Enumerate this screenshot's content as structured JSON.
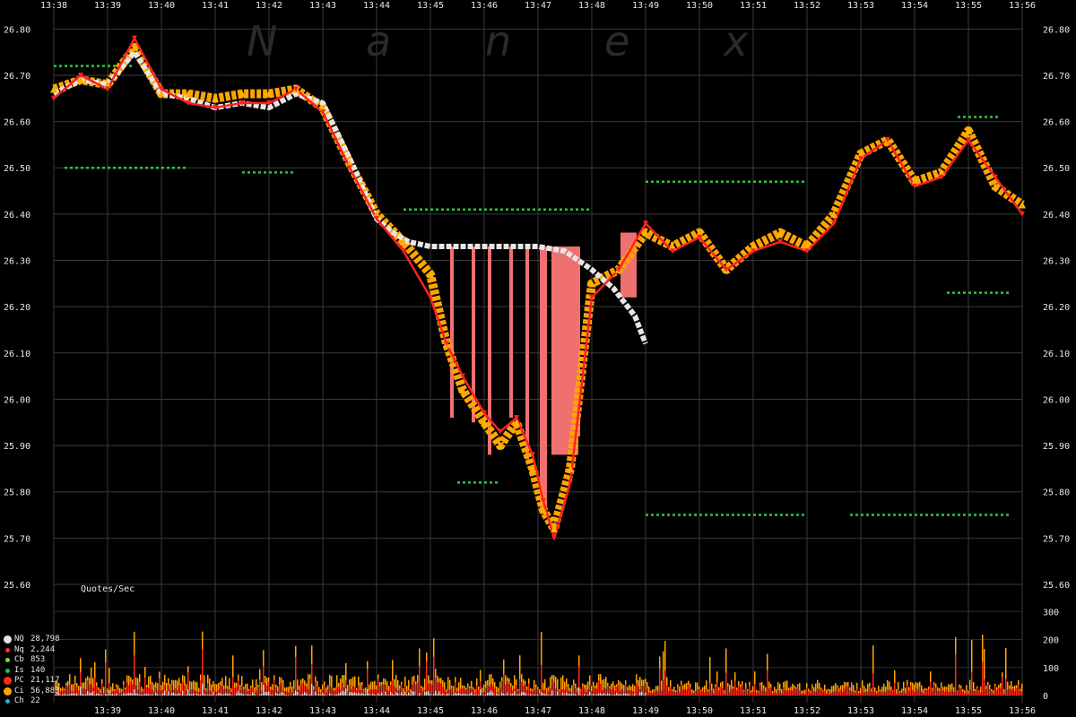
{
  "watermark": [
    "N",
    "a",
    "n",
    "e",
    "x"
  ],
  "chart_data": {
    "type": "scatter",
    "title": "",
    "x_ticks_top": [
      "13:38",
      "13:39",
      "13:40",
      "13:41",
      "13:42",
      "13:43",
      "13:44",
      "13:45",
      "13:46",
      "13:47",
      "13:48",
      "13:49",
      "13:50",
      "13:51",
      "13:52",
      "13:53",
      "13:54",
      "13:55",
      "13:56"
    ],
    "x_ticks_bottom": [
      "13:39",
      "13:40",
      "13:41",
      "13:42",
      "13:43",
      "13:44",
      "13:45",
      "13:46",
      "13:47",
      "13:48",
      "13:49",
      "13:50",
      "13:51",
      "13:52",
      "13:53",
      "13:54",
      "13:55",
      "13:56"
    ],
    "xlim": [
      "13:38",
      "13:56"
    ],
    "y_ticks": [
      "26.80",
      "26.70",
      "26.60",
      "26.50",
      "26.40",
      "26.30",
      "26.20",
      "26.10",
      "26.00",
      "25.90",
      "25.80",
      "25.70",
      "25.60"
    ],
    "ylim": [
      25.6,
      26.82
    ],
    "volume_panel": {
      "label": "Quotes/Sec",
      "y_ticks": [
        "300",
        "200",
        "100",
        "0"
      ],
      "ylim": [
        0,
        320
      ]
    },
    "series": [
      {
        "name": "NQ",
        "count": "28,798",
        "color": "#e6e6e6",
        "x": [
          0,
          0.5,
          1,
          1.5,
          2,
          2.5,
          3,
          3.5,
          4,
          4.5,
          5,
          5.5,
          6,
          6.3,
          6.6,
          7,
          7.5,
          8,
          8.5,
          9,
          9.5,
          10,
          10.4,
          10.8,
          11
        ],
        "y": [
          26.66,
          26.69,
          26.68,
          26.75,
          26.66,
          26.65,
          26.63,
          26.64,
          26.63,
          26.66,
          26.64,
          26.52,
          26.39,
          26.36,
          26.34,
          26.33,
          26.33,
          26.33,
          26.33,
          26.33,
          26.32,
          26.28,
          26.24,
          26.18,
          26.12
        ]
      },
      {
        "name": "Nq",
        "count": "2,244",
        "color": "#ff3030",
        "x": [
          0,
          0.5,
          1,
          1.5,
          2,
          2.5,
          3,
          3.5,
          4,
          4.5,
          5,
          5.5,
          6,
          6.5,
          7,
          7.3,
          7.6,
          8,
          8.3,
          8.6,
          8.9,
          9.1,
          9.3,
          9.6,
          10,
          10.5,
          11,
          11.5,
          12,
          12.5,
          13,
          13.5,
          14,
          14.5,
          15,
          15.5,
          16,
          16.5,
          17,
          17.5,
          18
        ],
        "y": [
          26.65,
          26.7,
          26.67,
          26.78,
          26.67,
          26.64,
          26.63,
          26.64,
          26.64,
          26.67,
          26.62,
          26.5,
          26.39,
          26.32,
          26.22,
          26.12,
          26.05,
          25.97,
          25.93,
          25.96,
          25.88,
          25.78,
          25.7,
          25.82,
          26.22,
          26.28,
          26.38,
          26.32,
          26.35,
          26.28,
          26.32,
          26.34,
          26.32,
          26.38,
          26.52,
          26.56,
          26.46,
          26.48,
          26.56,
          26.48,
          26.4
        ]
      },
      {
        "name": "Cb",
        "count": "853",
        "color": "#8fd12b"
      },
      {
        "name": "Is",
        "count": "140",
        "color": "#22c24a"
      },
      {
        "name": "PC",
        "count": "21,117",
        "color": "#ff2a1a"
      },
      {
        "name": "Ci",
        "count": "56,883",
        "color": "#ffa500",
        "x": [
          0,
          0.5,
          1,
          1.5,
          2,
          2.5,
          3,
          3.5,
          4,
          4.5,
          5,
          5.5,
          6,
          6.5,
          7,
          7.3,
          7.6,
          8,
          8.3,
          8.6,
          8.9,
          9.1,
          9.3,
          9.6,
          10,
          10.5,
          11,
          11.5,
          12,
          12.5,
          13,
          13.5,
          14,
          14.5,
          15,
          15.5,
          16,
          16.5,
          17,
          17.5,
          18
        ],
        "y": [
          26.67,
          26.69,
          26.68,
          26.76,
          26.66,
          26.66,
          26.65,
          26.66,
          26.66,
          26.67,
          26.63,
          26.51,
          26.4,
          26.34,
          26.27,
          26.12,
          26.02,
          25.95,
          25.9,
          25.95,
          25.85,
          25.76,
          25.72,
          25.85,
          26.25,
          26.28,
          26.36,
          26.33,
          26.36,
          26.28,
          26.33,
          26.36,
          26.33,
          26.4,
          26.53,
          26.56,
          26.47,
          26.49,
          26.58,
          26.46,
          26.42
        ]
      },
      {
        "name": "Ch",
        "count": "22",
        "color": "#2ea8d8"
      }
    ],
    "green_levels": [
      {
        "y": 26.72,
        "x": [
          0,
          1.5
        ]
      },
      {
        "y": 26.5,
        "x": [
          0.2,
          2.5
        ]
      },
      {
        "y": 26.49,
        "x": [
          3.5,
          4.5
        ]
      },
      {
        "y": 26.41,
        "x": [
          6.5,
          10
        ]
      },
      {
        "y": 25.82,
        "x": [
          7.5,
          8.3
        ]
      },
      {
        "y": 26.47,
        "x": [
          11,
          14
        ]
      },
      {
        "y": 25.75,
        "x": [
          11,
          14
        ]
      },
      {
        "y": 25.75,
        "x": [
          14.8,
          17.8
        ]
      },
      {
        "y": 26.23,
        "x": [
          16.6,
          17.8
        ]
      },
      {
        "y": 26.61,
        "x": [
          16.8,
          17.6
        ]
      }
    ],
    "spread_bands": [
      {
        "x": 7.4,
        "y_low": 25.96,
        "y_high": 26.33
      },
      {
        "x": 7.8,
        "y_low": 25.95,
        "y_high": 26.33
      },
      {
        "x": 8.1,
        "y_low": 25.88,
        "y_high": 26.33
      },
      {
        "x": 8.5,
        "y_low": 25.96,
        "y_high": 26.33
      },
      {
        "x": 8.8,
        "y_low": 25.87,
        "y_high": 26.33
      },
      {
        "x": 9.1,
        "y_low": 25.76,
        "y_high": 26.33
      },
      {
        "x": 9.5,
        "y_low": 25.88,
        "y_high": 26.33
      },
      {
        "x": 9.75,
        "y_low": 25.92,
        "y_high": 26.33
      },
      {
        "x": 10.7,
        "y_low": 26.24,
        "y_high": 26.33
      }
    ]
  },
  "legend": [
    {
      "name": "NQ",
      "count": "28,798",
      "color": "#e6e6e6",
      "size": "large"
    },
    {
      "name": "Nq",
      "count": "2,244",
      "color": "#ff3030",
      "size": "small"
    },
    {
      "name": "Cb",
      "count": "853",
      "color": "#8fd12b",
      "size": "small"
    },
    {
      "name": "Is",
      "count": "140",
      "color": "#22c24a",
      "size": "small"
    },
    {
      "name": "PC",
      "count": "21,117",
      "color": "#ff2a1a",
      "size": "large"
    },
    {
      "name": "Ci",
      "count": "56,883",
      "color": "#ffa500",
      "size": "large"
    },
    {
      "name": "Ch",
      "count": "22",
      "color": "#2ea8d8",
      "size": "small"
    }
  ]
}
